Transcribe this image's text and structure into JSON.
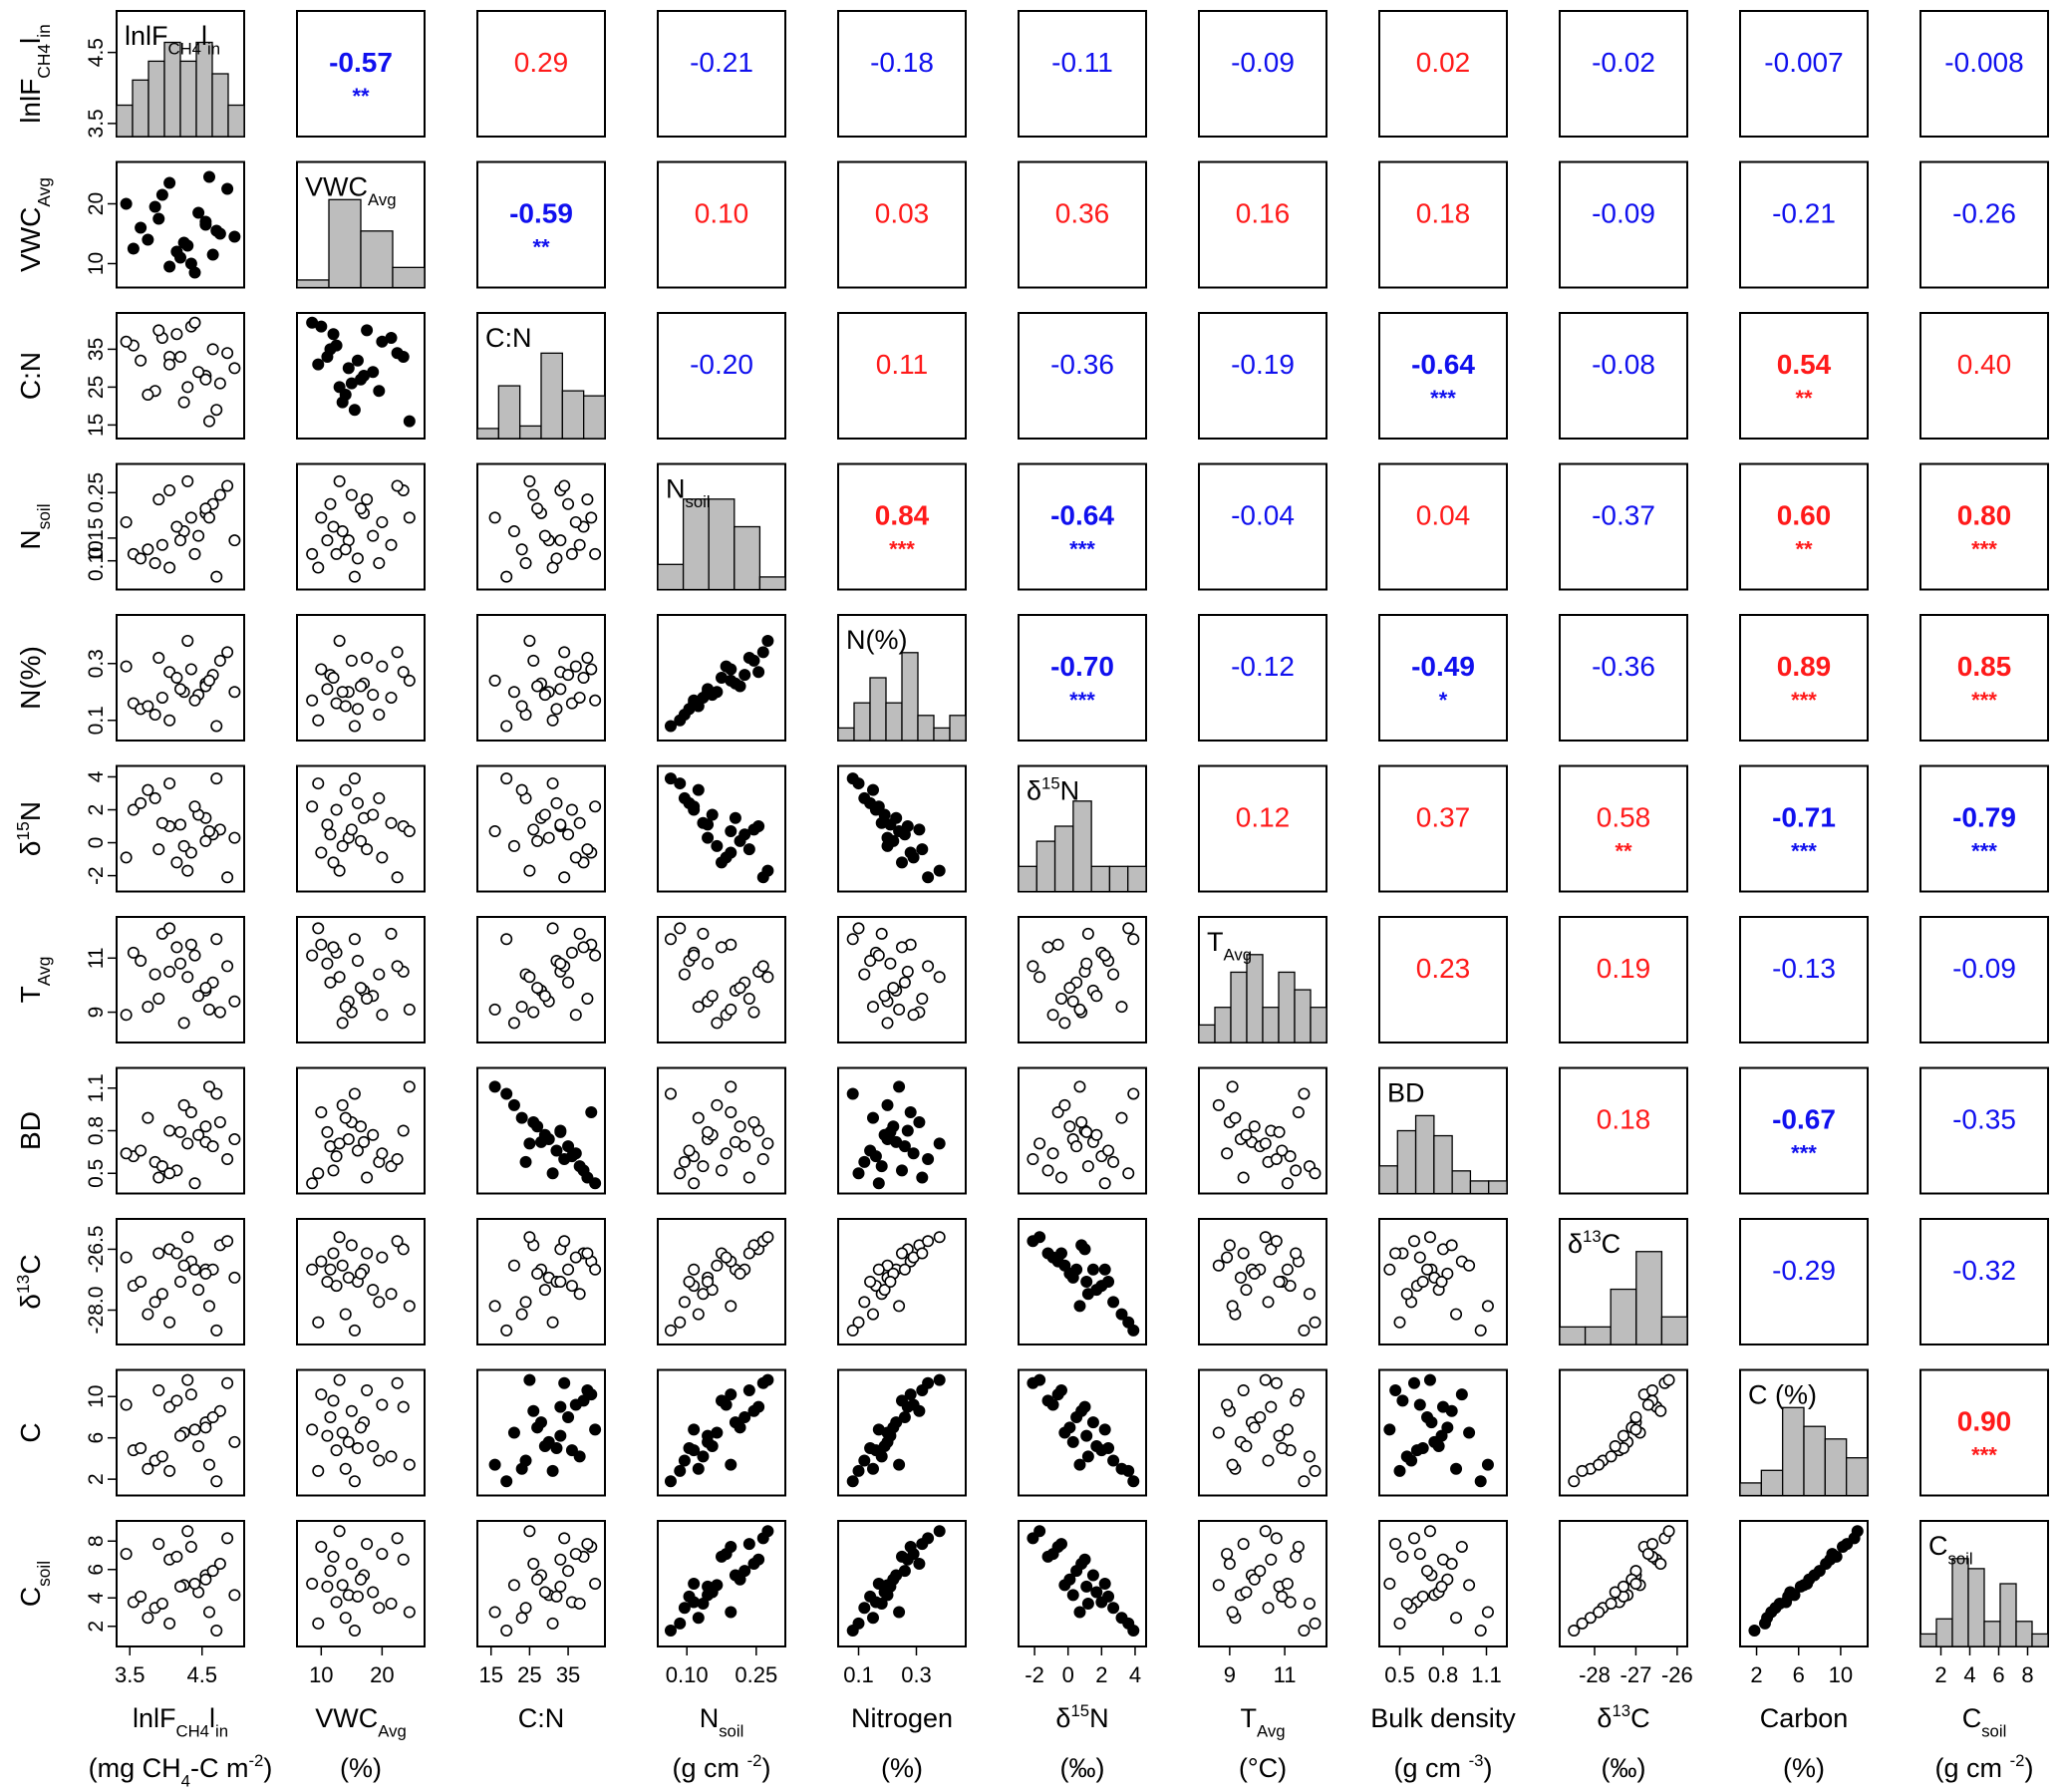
{
  "chart_data": {
    "type": "scatter-matrix",
    "variables": [
      {
        "id": "lnF",
        "panel_label": "lnlF",
        "panel_sub": "CH4",
        "panel_sup": "l",
        "panel_tail": "in",
        "row_main": "lnlF",
        "row_sub": "CH4",
        "row_tail": "l",
        "row_tail_sub": "in",
        "bottom_main": "lnlF",
        "bottom_sub": "CH4",
        "bottom_tail": "l",
        "bottom_tail_sub": "in",
        "unit_main": "(mg CH",
        "unit_sub": "4",
        "unit_tail": "-C m",
        "unit_sup": "-2",
        "unit_end": ")",
        "ticks": [
          "3.5",
          "4.5"
        ],
        "tick_values": [
          3.5,
          4.5
        ],
        "range": [
          3.4,
          5.0
        ],
        "side_ticks": [
          "3.5",
          "4.5"
        ],
        "side_tick_values": [
          3.5,
          4.5
        ],
        "hist": [
          0.25,
          0.45,
          0.6,
          0.75,
          0.6,
          0.75,
          0.5,
          0.25
        ]
      },
      {
        "id": "VWC",
        "panel_label": "VWC",
        "panel_sub": "Avg",
        "row_main": "VWC",
        "row_sub": "Avg",
        "bottom_main": "VWC",
        "bottom_sub": "Avg",
        "unit_main": "(%)",
        "ticks": [
          "10",
          "20"
        ],
        "tick_values": [
          10,
          20
        ],
        "range": [
          7,
          26
        ],
        "side_ticks": [
          "10",
          "20"
        ],
        "side_tick_values": [
          10,
          20
        ],
        "hist": [
          0.06,
          0.7,
          0.45,
          0.16
        ]
      },
      {
        "id": "CN",
        "panel_label": "C:N",
        "row_main": "C:N",
        "bottom_main": "C:N",
        "unit_main": "",
        "ticks": [
          "15",
          "25",
          "35"
        ],
        "tick_values": [
          15,
          25,
          35
        ],
        "range": [
          13,
          43
        ],
        "side_ticks": [
          "15",
          "25",
          "35"
        ],
        "side_tick_values": [
          15,
          25,
          35
        ],
        "hist": [
          0.08,
          0.42,
          0.1,
          0.68,
          0.38,
          0.34
        ]
      },
      {
        "id": "Nsoil",
        "panel_label": "N",
        "panel_sub": "soil",
        "row_main": "N",
        "row_sub": "soil",
        "bottom_main": "N",
        "bottom_sub": "soil",
        "unit_main": "(g cm ",
        "unit_sup": "-2",
        "unit_end": ")",
        "ticks": [
          "0.10",
          "0.25"
        ],
        "tick_values": [
          0.1,
          0.25
        ],
        "range": [
          0.05,
          0.3
        ],
        "side_ticks": [
          "0.10",
          "0.15",
          "0.25"
        ],
        "side_tick_values": [
          0.1,
          0.15,
          0.25
        ],
        "hist": [
          0.2,
          0.72,
          0.72,
          0.5,
          0.1
        ]
      },
      {
        "id": "Nper",
        "panel_label": "N(%)",
        "row_main": "N(%)",
        "bottom_main": "Nitrogen",
        "unit_main": "(%)",
        "ticks": [
          "0.1",
          "0.3"
        ],
        "tick_values": [
          0.1,
          0.3
        ],
        "range": [
          0.05,
          0.45
        ],
        "side_ticks": [
          "0.1",
          "0.3"
        ],
        "side_tick_values": [
          0.1,
          0.3
        ],
        "hist": [
          0.1,
          0.3,
          0.5,
          0.3,
          0.7,
          0.2,
          0.1,
          0.2
        ]
      },
      {
        "id": "d15N",
        "panel_label": "δ",
        "panel_sup": "15",
        "panel_tail": "N",
        "row_main": "δ",
        "row_sup": "15",
        "row_tail": "N",
        "bottom_main": "δ",
        "bottom_sup": "15",
        "bottom_tail": "N",
        "unit_main": "(‰)",
        "ticks": [
          "-2",
          "0",
          "2",
          "4"
        ],
        "tick_values": [
          -2,
          0,
          2,
          4
        ],
        "range": [
          -2.6,
          4.3
        ],
        "side_ticks": [
          "-2",
          "0",
          "2",
          "4"
        ],
        "side_tick_values": [
          -2,
          0,
          2,
          4
        ],
        "hist": [
          0.2,
          0.4,
          0.52,
          0.72,
          0.2,
          0.2,
          0.2
        ]
      },
      {
        "id": "T",
        "panel_label": "T",
        "panel_sub": "Avg",
        "row_main": "T",
        "row_sub": "Avg",
        "bottom_main": "T",
        "bottom_sub": "Avg",
        "unit_main": "(°C)",
        "ticks": [
          "9",
          "11"
        ],
        "tick_values": [
          9,
          11
        ],
        "range": [
          8.1,
          12.3
        ],
        "side_ticks": [
          "9",
          "11"
        ],
        "side_tick_values": [
          9,
          11
        ],
        "hist": [
          0.14,
          0.28,
          0.56,
          0.7,
          0.28,
          0.56,
          0.42,
          0.28
        ]
      },
      {
        "id": "BD",
        "panel_label": "BD",
        "row_main": "BD",
        "bottom_main": "Bulk density",
        "unit_main": "(g cm ",
        "unit_sup": "-3",
        "unit_end": ")",
        "ticks": [
          "0.5",
          "0.8",
          "1.1"
        ],
        "tick_values": [
          0.5,
          0.8,
          1.1
        ],
        "range": [
          0.4,
          1.2
        ],
        "side_ticks": [
          "0.5",
          "0.8",
          "1.1"
        ],
        "side_tick_values": [
          0.5,
          0.8,
          1.1
        ],
        "hist": [
          0.22,
          0.5,
          0.62,
          0.46,
          0.18,
          0.1,
          0.1
        ]
      },
      {
        "id": "d13C",
        "panel_label": "δ",
        "panel_sup": "13",
        "panel_tail": "C",
        "row_main": "δ",
        "row_sup": "13",
        "row_tail": "C",
        "bottom_main": "δ",
        "bottom_sup": "13",
        "bottom_tail": "C",
        "unit_main": "(‰)",
        "ticks": [
          "-28",
          "-27",
          "-26"
        ],
        "tick_values": [
          -28,
          -27,
          -26
        ],
        "range": [
          -28.7,
          -25.9
        ],
        "side_ticks": [
          "-28.0",
          "-26.5"
        ],
        "side_tick_values": [
          -28.0,
          -26.5
        ],
        "hist": [
          0.14,
          0.14,
          0.44,
          0.74,
          0.22
        ]
      },
      {
        "id": "C",
        "panel_label": "C (%)",
        "row_main": "C",
        "bottom_main": "Carbon",
        "unit_main": "(%)",
        "ticks": [
          "2",
          "6",
          "10"
        ],
        "tick_values": [
          2,
          6,
          10
        ],
        "range": [
          1,
          12
        ],
        "side_ticks": [
          "2",
          "6",
          "10"
        ],
        "side_tick_values": [
          2,
          6,
          10
        ],
        "hist": [
          0.1,
          0.2,
          0.7,
          0.55,
          0.45,
          0.3
        ]
      },
      {
        "id": "Csoil",
        "panel_label": "C",
        "panel_sub": "soil",
        "row_main": "C",
        "row_sub": "soil",
        "bottom_main": "C",
        "bottom_sub": "soil",
        "unit_main": "(g cm ",
        "unit_sup": "-2",
        "unit_end": ")",
        "ticks": [
          "2",
          "4",
          "6",
          "8"
        ],
        "tick_values": [
          2,
          4,
          6,
          8
        ],
        "range": [
          1,
          9
        ],
        "side_ticks": [
          "2",
          "4",
          "6",
          "8"
        ],
        "side_tick_values": [
          2,
          4,
          6,
          8
        ],
        "hist": [
          0.1,
          0.22,
          0.7,
          0.62,
          0.2,
          0.5,
          0.2,
          0.1
        ]
      }
    ],
    "correlations": [
      [
        null,
        "-0.57",
        "0.29",
        "-0.21",
        "-0.18",
        "-0.11",
        "-0.09",
        "0.02",
        "-0.02",
        "-0.007",
        "-0.008"
      ],
      [
        null,
        null,
        "-0.59",
        "0.10",
        "0.03",
        "0.36",
        "0.16",
        "0.18",
        "-0.09",
        "-0.21",
        "-0.26"
      ],
      [
        null,
        null,
        null,
        "-0.20",
        "0.11",
        "-0.36",
        "-0.19",
        "-0.64",
        "-0.08",
        "0.54",
        "0.40"
      ],
      [
        null,
        null,
        null,
        null,
        "0.84",
        "-0.64",
        "-0.04",
        "0.04",
        "-0.37",
        "0.60",
        "0.80"
      ],
      [
        null,
        null,
        null,
        null,
        null,
        "-0.70",
        "-0.12",
        "-0.49",
        "-0.36",
        "0.89",
        "0.85"
      ],
      [
        null,
        null,
        null,
        null,
        null,
        null,
        "0.12",
        "0.37",
        "0.58",
        "-0.71",
        "-0.79"
      ],
      [
        null,
        null,
        null,
        null,
        null,
        null,
        null,
        "0.23",
        "0.19",
        "-0.13",
        "-0.09"
      ],
      [
        null,
        null,
        null,
        null,
        null,
        null,
        null,
        null,
        "0.18",
        "-0.67",
        "-0.35"
      ],
      [
        null,
        null,
        null,
        null,
        null,
        null,
        null,
        null,
        null,
        "-0.29",
        "-0.32"
      ],
      [
        null,
        null,
        null,
        null,
        null,
        null,
        null,
        null,
        null,
        null,
        "0.90"
      ]
    ],
    "significance": [
      [
        null,
        "**",
        "",
        "",
        "",
        "",
        "",
        "",
        "",
        "",
        ""
      ],
      [
        null,
        null,
        "**",
        "",
        "",
        "",
        "",
        "",
        "",
        "",
        ""
      ],
      [
        null,
        null,
        null,
        "",
        "",
        "",
        "",
        "***",
        "",
        "**",
        ""
      ],
      [
        null,
        null,
        null,
        null,
        "***",
        "***",
        "",
        "",
        "",
        "**",
        "***"
      ],
      [
        null,
        null,
        null,
        null,
        null,
        "***",
        "",
        "*",
        "",
        "***",
        "***"
      ],
      [
        null,
        null,
        null,
        null,
        null,
        null,
        "",
        "",
        "**",
        "***",
        "***"
      ],
      [
        null,
        null,
        null,
        null,
        null,
        null,
        null,
        "",
        "",
        "",
        ""
      ],
      [
        null,
        null,
        null,
        null,
        null,
        null,
        null,
        null,
        "",
        "***",
        ""
      ],
      [
        null,
        null,
        null,
        null,
        null,
        null,
        null,
        null,
        null,
        "",
        ""
      ],
      [
        null,
        null,
        null,
        null,
        null,
        null,
        null,
        null,
        null,
        null,
        "***"
      ]
    ],
    "observations": [
      [
        4.05,
        23.5,
        33,
        0.255,
        0.27,
        1.0,
        10.5,
        0.8,
        -26.5,
        9.0,
        6.7
      ],
      [
        4.55,
        17.0,
        28,
        0.205,
        0.23,
        1.5,
        9.8,
        0.72,
        -27.0,
        7.5,
        5.6
      ],
      [
        3.55,
        12.5,
        36,
        0.115,
        0.16,
        2.0,
        11.2,
        0.62,
        -27.4,
        4.8,
        3.7
      ],
      [
        4.95,
        14.5,
        30,
        0.145,
        0.2,
        0.3,
        9.4,
        0.74,
        -27.2,
        5.6,
        4.2
      ],
      [
        3.85,
        19.5,
        24,
        0.095,
        0.12,
        2.7,
        10.4,
        0.58,
        -27.8,
        3.8,
        3.3
      ],
      [
        4.35,
        10.0,
        41,
        0.195,
        0.28,
        -0.6,
        11.5,
        0.93,
        -26.8,
        10.2,
        7.6
      ],
      [
        4.75,
        15.0,
        26,
        0.245,
        0.31,
        0.8,
        9.0,
        0.86,
        -26.4,
        8.6,
        6.4
      ],
      [
        3.95,
        21.5,
        38,
        0.135,
        0.18,
        1.2,
        11.9,
        0.55,
        -27.6,
        4.2,
        3.6
      ],
      [
        4.25,
        13.5,
        21,
        0.165,
        0.2,
        -0.2,
        8.6,
        0.98,
        -26.9,
        6.5,
        4.9
      ],
      [
        3.65,
        16.0,
        32,
        0.105,
        0.14,
        2.4,
        10.9,
        0.66,
        -27.3,
        5.0,
        4.1
      ],
      [
        4.65,
        11.5,
        35,
        0.225,
        0.26,
        0.5,
        10.1,
        0.69,
        -27.0,
        8.0,
        5.9
      ],
      [
        4.45,
        18.5,
        29,
        0.155,
        0.19,
        1.7,
        9.6,
        0.77,
        -27.5,
        5.2,
        4.4
      ],
      [
        4.15,
        12.0,
        39,
        0.175,
        0.25,
        -1.2,
        11.4,
        0.52,
        -26.6,
        9.6,
        6.9
      ],
      [
        3.75,
        14.0,
        23,
        0.125,
        0.15,
        3.2,
        9.2,
        0.89,
        -28.1,
        3.0,
        2.6
      ],
      [
        4.85,
        22.5,
        34,
        0.265,
        0.34,
        -2.1,
        10.7,
        0.6,
        -26.3,
        11.3,
        8.2
      ],
      [
        4.55,
        16.5,
        27,
        0.215,
        0.22,
        0.1,
        9.9,
        0.83,
        -27.1,
        7.0,
        5.3
      ],
      [
        4.05,
        9.5,
        31,
        0.085,
        0.1,
        3.6,
        12.1,
        0.5,
        -28.3,
        2.8,
        2.2
      ],
      [
        3.45,
        20.0,
        37,
        0.185,
        0.29,
        -0.9,
        8.9,
        0.64,
        -26.7,
        9.2,
        7.1
      ],
      [
        4.3,
        13.0,
        25,
        0.275,
        0.38,
        -1.7,
        10.3,
        0.71,
        -26.2,
        11.6,
        8.7
      ],
      [
        4.7,
        15.5,
        19,
        0.065,
        0.08,
        3.9,
        11.7,
        1.06,
        -28.5,
        1.8,
        1.7
      ],
      [
        3.9,
        17.5,
        40,
        0.235,
        0.32,
        -0.4,
        9.5,
        0.47,
        -26.6,
        10.6,
        7.8
      ],
      [
        4.2,
        11.0,
        33,
        0.145,
        0.21,
        1.1,
        10.8,
        0.79,
        -27.3,
        6.2,
        4.8
      ],
      [
        4.6,
        24.5,
        16,
        0.195,
        0.24,
        0.7,
        9.1,
        1.11,
        -27.9,
        3.4,
        3.0
      ],
      [
        4.4,
        8.5,
        42,
        0.115,
        0.17,
        2.2,
        11.1,
        0.43,
        -27.0,
        6.8,
        5.0
      ]
    ]
  }
}
